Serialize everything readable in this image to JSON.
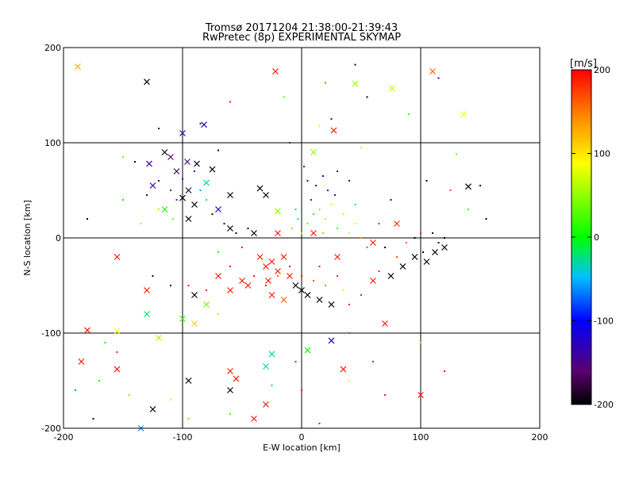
{
  "chart_data": {
    "type": "scatter",
    "title": "Tromsø 20171204 21:38:00-21:39:43",
    "subtitle": "RwPretec (8p) EXPERIMENTAL SKYMAP",
    "xlabel": "E-W location [km]",
    "ylabel": "N-S location [km]",
    "xlim": [
      -200,
      200
    ],
    "ylim": [
      -200,
      200
    ],
    "xticks": [
      -200,
      -100,
      0,
      100,
      200
    ],
    "yticks": [
      -200,
      -100,
      0,
      100,
      200
    ],
    "grid": true,
    "grid_lines": {
      "x": [
        -100,
        0,
        100
      ],
      "y": [
        -100,
        0,
        100
      ]
    },
    "colorbar": {
      "label": "[m/s]",
      "range": [
        -200,
        200
      ],
      "ticks": [
        200,
        100,
        0,
        -100,
        -200
      ],
      "colormap": "black-purple-blue-cyan-green-yellow-orange-red"
    },
    "series": [
      {
        "marker": "x",
        "points": [
          [
            -188,
            180,
            130
          ],
          [
            -22,
            175,
            190
          ],
          [
            110,
            175,
            160
          ],
          [
            -130,
            164,
            -200
          ],
          [
            45,
            162,
            60
          ],
          [
            76,
            157,
            70
          ],
          [
            136,
            130,
            90
          ],
          [
            27,
            113,
            190
          ],
          [
            -100,
            110,
            -140
          ],
          [
            -82,
            119,
            -130
          ],
          [
            -115,
            90,
            -190
          ],
          [
            -110,
            85,
            -160
          ],
          [
            -96,
            80,
            -150
          ],
          [
            -128,
            78,
            -140
          ],
          [
            -88,
            78,
            -190
          ],
          [
            -75,
            72,
            -200
          ],
          [
            -105,
            70,
            -170
          ],
          [
            -80,
            58,
            -30
          ],
          [
            -125,
            55,
            -140
          ],
          [
            -95,
            50,
            -180
          ],
          [
            -100,
            42,
            -200
          ],
          [
            -60,
            45,
            -200
          ],
          [
            -35,
            52,
            -200
          ],
          [
            -30,
            45,
            -200
          ],
          [
            -90,
            35,
            -200
          ],
          [
            -70,
            30,
            -120
          ],
          [
            -115,
            30,
            10
          ],
          [
            -20,
            28,
            50
          ],
          [
            -95,
            20,
            -200
          ],
          [
            -60,
            10,
            -200
          ],
          [
            -40,
            5,
            -200
          ],
          [
            10,
            5,
            190
          ],
          [
            80,
            15,
            180
          ],
          [
            60,
            -5,
            190
          ],
          [
            95,
            -20,
            -200
          ],
          [
            105,
            -25,
            -200
          ],
          [
            112,
            -15,
            -200
          ],
          [
            120,
            -10,
            -200
          ],
          [
            85,
            -30,
            -200
          ],
          [
            75,
            -40,
            -200
          ],
          [
            60,
            -45,
            190
          ],
          [
            -155,
            -20,
            190
          ],
          [
            -130,
            -55,
            190
          ],
          [
            -70,
            -40,
            190
          ],
          [
            -50,
            -45,
            190
          ],
          [
            -45,
            -50,
            190
          ],
          [
            -30,
            -30,
            190
          ],
          [
            -25,
            -25,
            190
          ],
          [
            -20,
            -35,
            190
          ],
          [
            -15,
            -20,
            190
          ],
          [
            -10,
            -40,
            190
          ],
          [
            -35,
            -20,
            190
          ],
          [
            -28,
            -45,
            190
          ],
          [
            -5,
            -50,
            -200
          ],
          [
            0,
            -55,
            -200
          ],
          [
            5,
            -60,
            -200
          ],
          [
            15,
            -65,
            -200
          ],
          [
            25,
            -70,
            -200
          ],
          [
            -15,
            -65,
            160
          ],
          [
            -25,
            -60,
            190
          ],
          [
            -60,
            -55,
            190
          ],
          [
            -90,
            -60,
            -200
          ],
          [
            -80,
            -70,
            40
          ],
          [
            -100,
            -85,
            20
          ],
          [
            -90,
            -90,
            110
          ],
          [
            -130,
            -80,
            -20
          ],
          [
            -155,
            -98,
            90
          ],
          [
            -120,
            -105,
            60
          ],
          [
            -180,
            -97,
            190
          ],
          [
            -185,
            -130,
            190
          ],
          [
            -155,
            -138,
            190
          ],
          [
            -25,
            -122,
            -30
          ],
          [
            -30,
            -135,
            -30
          ],
          [
            5,
            -118,
            0
          ],
          [
            25,
            -108,
            -120
          ],
          [
            35,
            -138,
            190
          ],
          [
            -95,
            -150,
            -200
          ],
          [
            -60,
            -160,
            -200
          ],
          [
            -30,
            -175,
            190
          ],
          [
            -40,
            -190,
            190
          ],
          [
            -125,
            -180,
            -200
          ],
          [
            -135,
            -200,
            -60
          ],
          [
            -60,
            -140,
            190
          ],
          [
            -55,
            -148,
            190
          ],
          [
            70,
            -90,
            190
          ],
          [
            100,
            -165,
            190
          ],
          [
            140,
            54,
            -200
          ],
          [
            10,
            90,
            50
          ],
          [
            -20,
            5,
            190
          ],
          [
            30,
            -20,
            190
          ]
        ]
      },
      {
        "marker": "dot",
        "points": [
          [
            45,
            182,
            -200
          ],
          [
            115,
            168,
            -120
          ],
          [
            20,
            163,
            160
          ],
          [
            -15,
            148,
            20
          ],
          [
            -60,
            143,
            190
          ],
          [
            55,
            148,
            -200
          ],
          [
            90,
            130,
            20
          ],
          [
            25,
            125,
            -140
          ],
          [
            -120,
            115,
            -200
          ],
          [
            -85,
            120,
            -160
          ],
          [
            15,
            118,
            100
          ],
          [
            -10,
            100,
            -160
          ],
          [
            50,
            95,
            100
          ],
          [
            -150,
            85,
            30
          ],
          [
            -140,
            80,
            -200
          ],
          [
            -70,
            92,
            -200
          ],
          [
            130,
            88,
            30
          ],
          [
            105,
            60,
            -200
          ],
          [
            75,
            40,
            -180
          ],
          [
            140,
            30,
            20
          ],
          [
            155,
            20,
            -200
          ],
          [
            150,
            55,
            -200
          ],
          [
            125,
            50,
            170
          ],
          [
            40,
            -100,
            190
          ],
          [
            -5,
            -130,
            190
          ],
          [
            120,
            -140,
            190
          ],
          [
            -170,
            -150,
            10
          ],
          [
            -190,
            -160,
            -60
          ],
          [
            -145,
            -165,
            40
          ],
          [
            -110,
            -170,
            70
          ],
          [
            -95,
            -190,
            30
          ],
          [
            -60,
            -185,
            30
          ],
          [
            40,
            -150,
            90
          ],
          [
            70,
            -165,
            190
          ],
          [
            15,
            -195,
            190
          ],
          [
            -25,
            -155,
            -10
          ],
          [
            0,
            -160,
            190
          ],
          [
            60,
            -130,
            190
          ],
          [
            100,
            -110,
            50
          ],
          [
            -165,
            -110,
            0
          ],
          [
            -175,
            -190,
            -200
          ],
          [
            -155,
            -120,
            190
          ],
          [
            -180,
            20,
            -200
          ],
          [
            -135,
            15,
            60
          ],
          [
            -150,
            40,
            0
          ],
          [
            5,
            60,
            -140
          ],
          [
            12,
            55,
            -120
          ],
          [
            18,
            65,
            -110
          ],
          [
            22,
            50,
            -100
          ],
          [
            8,
            40,
            -90
          ],
          [
            28,
            45,
            -130
          ],
          [
            15,
            30,
            40
          ],
          [
            20,
            20,
            60
          ],
          [
            5,
            15,
            30
          ],
          [
            30,
            10,
            20
          ],
          [
            25,
            35,
            70
          ],
          [
            10,
            25,
            10
          ],
          [
            35,
            25,
            110
          ],
          [
            0,
            5,
            60
          ],
          [
            40,
            5,
            80
          ],
          [
            45,
            15,
            100
          ],
          [
            50,
            0,
            140
          ],
          [
            55,
            -10,
            170
          ],
          [
            -5,
            30,
            -40
          ],
          [
            2,
            75,
            -150
          ],
          [
            30,
            70,
            -160
          ],
          [
            40,
            60,
            -170
          ],
          [
            45,
            35,
            -30
          ],
          [
            -3,
            20,
            -20
          ],
          [
            -8,
            10,
            40
          ],
          [
            18,
            5,
            130
          ],
          [
            100,
            5,
            190
          ],
          [
            88,
            -5,
            160
          ],
          [
            95,
            0,
            -200
          ],
          [
            110,
            5,
            -200
          ],
          [
            115,
            -5,
            -200
          ],
          [
            120,
            0,
            -200
          ],
          [
            102,
            -15,
            -200
          ],
          [
            65,
            15,
            190
          ],
          [
            70,
            -10,
            -200
          ],
          [
            -120,
            60,
            -170
          ],
          [
            -110,
            50,
            -150
          ],
          [
            -105,
            40,
            -90
          ],
          [
            -100,
            62,
            -130
          ],
          [
            -90,
            70,
            -110
          ],
          [
            -85,
            50,
            -60
          ],
          [
            -80,
            40,
            -20
          ],
          [
            -130,
            45,
            -180
          ],
          [
            -120,
            30,
            60
          ],
          [
            -108,
            20,
            40
          ],
          [
            -75,
            25,
            -200
          ],
          [
            -65,
            15,
            -200
          ],
          [
            -55,
            5,
            -200
          ],
          [
            -45,
            10,
            -200
          ],
          [
            -50,
            -10,
            190
          ],
          [
            -70,
            -15,
            10
          ],
          [
            -60,
            -30,
            190
          ],
          [
            -40,
            -40,
            190
          ],
          [
            -30,
            -50,
            190
          ],
          [
            -20,
            -40,
            160
          ],
          [
            -10,
            -30,
            190
          ],
          [
            0,
            -40,
            190
          ],
          [
            10,
            -45,
            170
          ],
          [
            15,
            -30,
            190
          ],
          [
            20,
            -50,
            150
          ],
          [
            30,
            -40,
            190
          ],
          [
            -80,
            -55,
            190
          ],
          [
            -95,
            -50,
            190
          ],
          [
            -70,
            -80,
            60
          ],
          [
            -110,
            -50,
            -200
          ],
          [
            -125,
            -40,
            -200
          ],
          [
            40,
            -70,
            190
          ],
          [
            50,
            -60,
            190
          ],
          [
            35,
            -55,
            80
          ],
          [
            65,
            -35,
            190
          ],
          [
            80,
            -20,
            170
          ]
        ]
      }
    ]
  }
}
